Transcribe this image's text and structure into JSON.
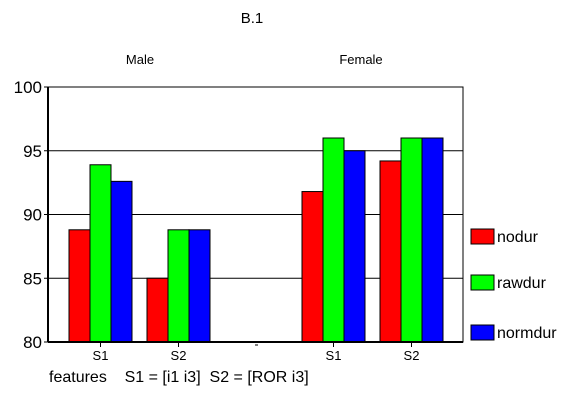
{
  "chart_data": {
    "type": "bar",
    "title": "B.1",
    "group_labels": [
      "Male",
      "Female"
    ],
    "categories": [
      "S1",
      "S2",
      "S1",
      "S2"
    ],
    "series": [
      {
        "name": "nodur",
        "color": "#ff0000",
        "values": [
          88.8,
          85.0,
          91.8,
          94.2
        ]
      },
      {
        "name": "rawdur",
        "color": "#00ff00",
        "values": [
          93.9,
          88.8,
          96.0,
          96.0
        ]
      },
      {
        "name": "normdur",
        "color": "#0000ff",
        "values": [
          92.6,
          88.8,
          95.0,
          96.0
        ]
      }
    ],
    "y_ticks": [
      "80",
      "85",
      "90",
      "95",
      "100"
    ],
    "ylim": [
      80,
      100
    ],
    "grid": true,
    "legend_position": "right"
  },
  "caption": "features    S1 = [i1 i3]  S2 = [ROR i3]"
}
